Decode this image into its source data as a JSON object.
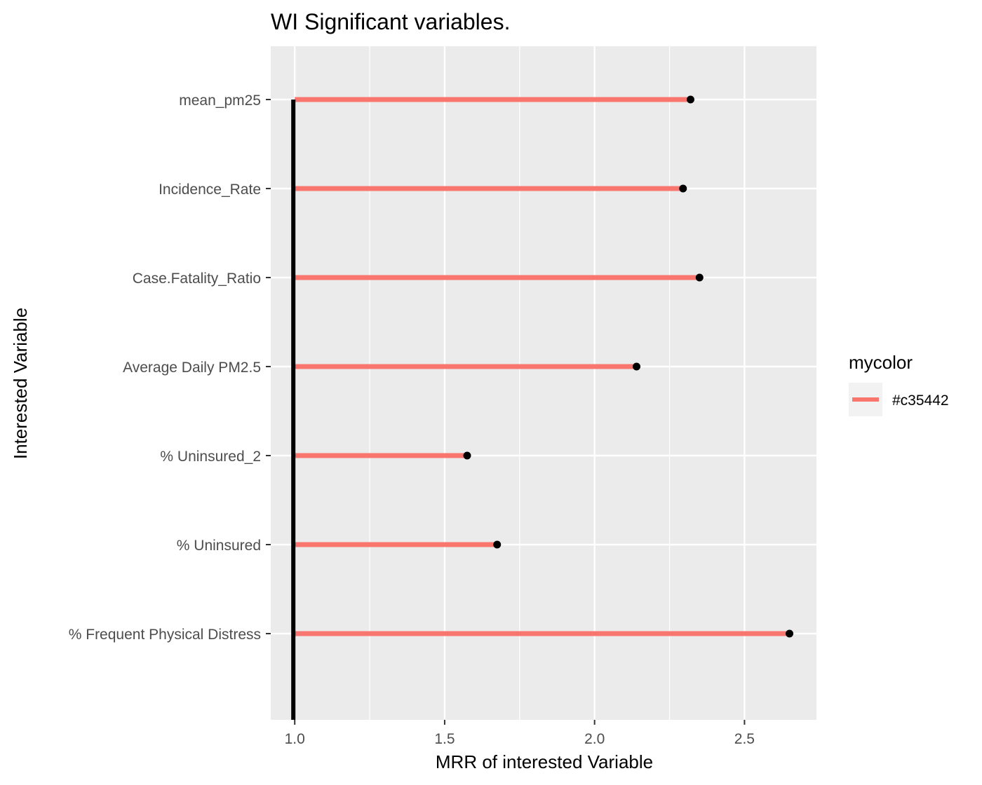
{
  "chart_data": {
    "type": "lollipop",
    "title": "WI Significant variables.",
    "xlabel": "MRR of interested Variable",
    "ylabel": "Interested Variable",
    "xlim": [
      0.92,
      2.74
    ],
    "x_ticks": [
      1.0,
      1.5,
      2.0,
      2.5
    ],
    "x_tick_labels": [
      "1.0",
      "1.5",
      "2.0",
      "2.5"
    ],
    "baseline": 1.0,
    "categories": [
      "mean_pm25",
      "Incidence_Rate",
      "Case.Fatality_Ratio",
      "Average Daily PM2.5",
      "% Uninsured_2",
      "% Uninsured",
      "% Frequent Physical Distress"
    ],
    "values": [
      2.32,
      2.295,
      2.35,
      2.14,
      1.575,
      1.675,
      2.65
    ],
    "grid": true,
    "legend": {
      "title": "mycolor",
      "entries": [
        {
          "label": "#c35442",
          "color": "#F8766D"
        }
      ],
      "position": "right"
    },
    "colors": {
      "segment": "#F8766D",
      "point": "#000000",
      "baseline": "#000000",
      "panel": "#EBEBEB",
      "grid": "#FFFFFF"
    }
  }
}
